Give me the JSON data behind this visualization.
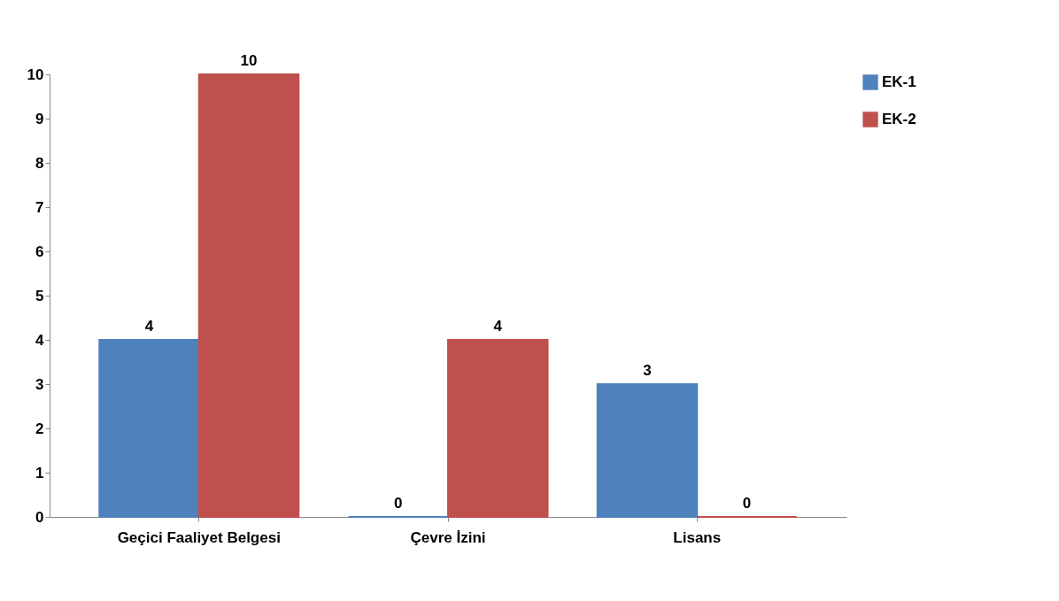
{
  "chart_data": {
    "type": "bar",
    "categories": [
      "Geçici Faaliyet Belgesi",
      "Çevre İzini",
      "Lisans"
    ],
    "series": [
      {
        "name": "EK-1",
        "color": "#4f81bd",
        "values": [
          4,
          0,
          3
        ]
      },
      {
        "name": "EK-2",
        "color": "#c0504d",
        "values": [
          10,
          4,
          0
        ]
      }
    ],
    "ylim": [
      0,
      10
    ],
    "yticks": [
      0,
      1,
      2,
      3,
      4,
      5,
      6,
      7,
      8,
      9,
      10
    ],
    "grid": false,
    "legend": "right",
    "data_labels": true
  }
}
